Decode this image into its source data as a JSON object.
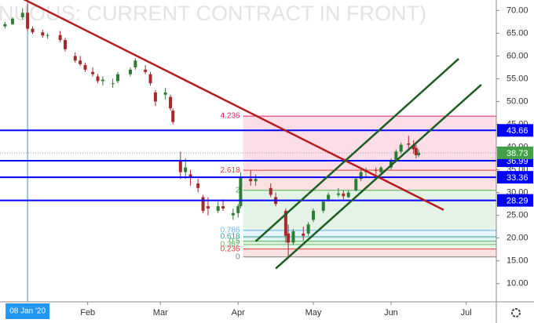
{
  "chart_data": {
    "type": "candlestick",
    "title": "NUOUS: CURRENT CONTRACT IN FRONT)",
    "x": [
      "2019-12-30",
      "2020-01-02",
      "2020-01-06",
      "2020-01-08",
      "2020-01-10",
      "2020-01-14",
      "2020-01-16",
      "2020-01-21",
      "2020-01-23",
      "2020-01-27",
      "2020-01-29",
      "2020-01-31",
      "2020-02-03",
      "2020-02-05",
      "2020-02-07",
      "2020-02-11",
      "2020-02-13",
      "2020-02-18",
      "2020-02-20",
      "2020-02-24",
      "2020-02-26",
      "2020-02-28",
      "2020-03-03",
      "2020-03-05",
      "2020-03-06",
      "2020-03-09",
      "2020-03-11",
      "2020-03-13",
      "2020-03-16",
      "2020-03-18",
      "2020-03-20",
      "2020-03-24",
      "2020-03-26",
      "2020-03-30",
      "2020-04-01",
      "2020-04-02",
      "2020-04-06",
      "2020-04-08",
      "2020-04-14",
      "2020-04-16",
      "2020-04-20",
      "2020-04-21",
      "2020-04-23",
      "2020-04-27",
      "2020-04-29",
      "2020-05-01",
      "2020-05-05",
      "2020-05-07",
      "2020-05-11",
      "2020-05-13",
      "2020-05-15",
      "2020-05-18",
      "2020-05-20",
      "2020-05-22",
      "2020-05-26",
      "2020-05-28",
      "2020-06-01",
      "2020-06-03",
      "2020-06-05",
      "2020-06-08",
      "2020-06-10",
      "2020-06-11",
      "2020-06-12"
    ],
    "open": [
      66.5,
      67,
      68.5,
      69.5,
      66,
      65.2,
      64.5,
      64.6,
      63.5,
      60,
      59,
      58,
      56.5,
      55.5,
      54.5,
      54,
      54.5,
      56,
      57.5,
      57,
      56,
      52,
      51.5,
      51,
      48,
      37,
      34.5,
      34,
      32,
      29,
      27,
      26,
      27,
      25,
      25.5,
      27,
      33,
      32.5,
      31,
      29,
      26,
      21,
      19,
      21,
      21,
      24,
      26,
      28.5,
      29.5,
      29.8,
      29,
      30.5,
      33,
      34.5,
      35,
      34.5,
      35.5,
      37,
      39,
      40.8,
      40.5,
      39.8,
      38.2
    ],
    "high": [
      67.5,
      68.5,
      70.5,
      71.5,
      66.5,
      65.8,
      65,
      65.5,
      64,
      60.8,
      60,
      58.5,
      57.5,
      56,
      55.5,
      55,
      56.5,
      57.5,
      59.5,
      58,
      56.5,
      52.5,
      53,
      51.5,
      48.5,
      39,
      37.5,
      35,
      33,
      29.5,
      29,
      28,
      28.5,
      26.5,
      27.5,
      34.5,
      35,
      34,
      32,
      30,
      26.5,
      23,
      22,
      22.5,
      23.5,
      26.5,
      28.5,
      30,
      31,
      30.5,
      30.5,
      33.5,
      35,
      35.5,
      35.5,
      35.8,
      37.5,
      39.5,
      41,
      42.5,
      41.5,
      40.5,
      39.5
    ],
    "low": [
      66,
      66.8,
      68,
      65.5,
      64.8,
      64,
      63.8,
      63,
      61,
      58.5,
      57.8,
      56.5,
      55.5,
      54,
      53.5,
      53,
      54,
      55.5,
      57,
      56,
      53.5,
      49,
      50.5,
      48,
      45,
      33,
      33,
      31.5,
      30,
      25.5,
      25,
      25.5,
      26,
      24,
      24.5,
      26.5,
      31.5,
      31.5,
      29,
      27,
      19,
      16,
      18.5,
      19.5,
      20.5,
      23.5,
      25.5,
      28,
      29,
      28.5,
      28.8,
      30.3,
      32.5,
      33.5,
      34,
      33.8,
      35,
      36.8,
      38.5,
      39.5,
      38.5,
      37.5,
      37.8
    ],
    "close": [
      67,
      68.2,
      69.5,
      66,
      65.2,
      64.5,
      64.6,
      63.5,
      61.5,
      59,
      58.2,
      57,
      56,
      54.5,
      54.8,
      54,
      56,
      57,
      59,
      56.5,
      54,
      50,
      52,
      48.5,
      45.5,
      34.5,
      35.5,
      33.5,
      31,
      26,
      26.5,
      27,
      26.5,
      25.5,
      27,
      33.5,
      32.5,
      33,
      29.5,
      27.5,
      20.5,
      19,
      21.5,
      20.5,
      23,
      26,
      28,
      29.5,
      29.8,
      29.2,
      30,
      33,
      34.5,
      35,
      34.8,
      35.5,
      37,
      39,
      40.5,
      40.5,
      39.5,
      38.2,
      38.73
    ],
    "up_color": "#2e7d32",
    "down_color": "#a52a2a",
    "xlim": [
      "2019-12-28",
      "2020-07-13"
    ],
    "xticks": [
      {
        "value": "2020-02-01",
        "label": "Feb"
      },
      {
        "value": "2020-03-01",
        "label": "Mar"
      },
      {
        "value": "2020-04-01",
        "label": "Apr"
      },
      {
        "value": "2020-05-01",
        "label": "May"
      },
      {
        "value": "2020-06-01",
        "label": "Jun"
      },
      {
        "value": "2020-07-01",
        "label": "Jul"
      }
    ],
    "ylim": [
      6,
      72.3
    ],
    "yticks": [
      {
        "value": 70,
        "label": "70.00"
      },
      {
        "value": 65,
        "label": "65.00"
      },
      {
        "value": 60,
        "label": "60.00"
      },
      {
        "value": 55,
        "label": "55.00"
      },
      {
        "value": 50,
        "label": "50.00"
      },
      {
        "value": 45,
        "label": "45.00"
      },
      {
        "value": 40,
        "label": "40.00"
      },
      {
        "value": 35,
        "label": "35.00"
      },
      {
        "value": 30,
        "label": "30.00"
      },
      {
        "value": 25,
        "label": "25.00"
      },
      {
        "value": 20,
        "label": "20.00"
      },
      {
        "value": 15,
        "label": "15.00"
      },
      {
        "value": 10,
        "label": "10.00"
      }
    ],
    "crosshair": {
      "x": "2020-01-08",
      "label": "08 Jan '20",
      "color": "#2196f3"
    },
    "levels": [
      {
        "price": 43.66,
        "color": "#0000ff"
      },
      {
        "price": 36.99,
        "color": "#0000ff"
      },
      {
        "price": 33.36,
        "color": "#0000ff"
      },
      {
        "price": 28.29,
        "color": "#0000ff"
      }
    ],
    "last_price": {
      "price": 38.73,
      "color": "#43a047"
    },
    "fib": {
      "start": "2020-04-03",
      "levels": [
        {
          "ratio": 4.236,
          "price": 46.8,
          "color": "#e91e63"
        },
        {
          "ratio": 2.618,
          "price": 34.9,
          "color": "#e53935"
        },
        {
          "ratio": 2,
          "price": 30.5,
          "color": "#4caf50"
        },
        {
          "ratio": 0.786,
          "price": 21.7,
          "color": "#64b5f6"
        },
        {
          "ratio": 0.618,
          "price": 20.3,
          "color": "#26a69a"
        },
        {
          "ratio": 0.5,
          "price": 19.3,
          "color": "#4caf50"
        },
        {
          "ratio": 0.382,
          "price": 18.6,
          "color": "#66bb6a"
        },
        {
          "ratio": 0.236,
          "price": 17.6,
          "color": "#e53935"
        },
        {
          "ratio": 0,
          "price": 15.85,
          "color": "#787b86"
        }
      ]
    },
    "trend_lines": [
      {
        "x": [
          "2020-01-06",
          "2020-06-22"
        ],
        "y": [
          72.6,
          26.2
        ],
        "color": "#b71c1c"
      },
      {
        "x": [
          "2020-04-08",
          "2020-06-28"
        ],
        "y": [
          19.3,
          59.4
        ],
        "color": "#1b5e20"
      },
      {
        "x": [
          "2020-04-16",
          "2020-07-07"
        ],
        "y": [
          13.3,
          53.7
        ],
        "color": "#1b5e20"
      }
    ]
  }
}
